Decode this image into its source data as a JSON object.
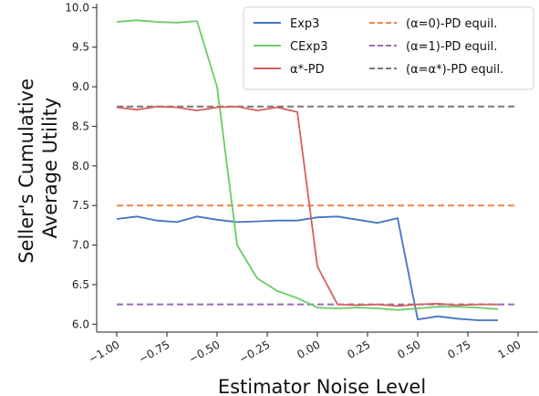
{
  "chart_data": {
    "type": "line",
    "xlabel": "Estimator Noise Level",
    "ylabel_lines": [
      "Seller's Cumulative",
      "Average Utility"
    ],
    "xlim": [
      -1.1,
      1.1
    ],
    "ylim": [
      5.9,
      10.05
    ],
    "x_ticks": [
      -1.0,
      -0.75,
      -0.5,
      -0.25,
      0.0,
      0.25,
      0.5,
      0.75,
      1.0
    ],
    "x_tick_labels": [
      "−1.00",
      "−0.75",
      "−0.50",
      "−0.25",
      "0.00",
      "0.25",
      "0.50",
      "0.75",
      "1.00"
    ],
    "y_ticks": [
      6.0,
      6.5,
      7.0,
      7.5,
      8.0,
      8.5,
      9.0,
      9.5,
      10.0
    ],
    "y_tick_labels": [
      "6.0",
      "6.5",
      "7.0",
      "7.5",
      "8.0",
      "8.5",
      "9.0",
      "9.5",
      "10.0"
    ],
    "grid": false,
    "legend_position": "top-right",
    "x": [
      -1.0,
      -0.9,
      -0.8,
      -0.7,
      -0.6,
      -0.5,
      -0.4,
      -0.3,
      -0.2,
      -0.1,
      0.0,
      0.1,
      0.2,
      0.3,
      0.4,
      0.5,
      0.6,
      0.7,
      0.8,
      0.9
    ],
    "series": [
      {
        "name": "Exp3",
        "color": "#4472c4",
        "style": "solid",
        "values": [
          7.33,
          7.36,
          7.31,
          7.29,
          7.36,
          7.32,
          7.29,
          7.3,
          7.31,
          7.31,
          7.35,
          7.36,
          7.32,
          7.28,
          7.34,
          6.06,
          6.1,
          6.07,
          6.05,
          6.05
        ]
      },
      {
        "name": "CExp3",
        "color": "#6acc64",
        "style": "solid",
        "values": [
          9.82,
          9.84,
          9.82,
          9.81,
          9.83,
          9.0,
          7.0,
          6.58,
          6.42,
          6.33,
          6.21,
          6.2,
          6.21,
          6.2,
          6.18,
          6.2,
          6.22,
          6.22,
          6.21,
          6.19
        ]
      },
      {
        "name": "α*-PD",
        "color": "#d65f5f",
        "style": "solid",
        "values": [
          8.74,
          8.71,
          8.75,
          8.74,
          8.7,
          8.74,
          8.75,
          8.7,
          8.74,
          8.68,
          6.73,
          6.25,
          6.24,
          6.25,
          6.23,
          6.25,
          6.26,
          6.24,
          6.25,
          6.25
        ]
      }
    ],
    "reference_lines": [
      {
        "name": "(α=0)-PD equil.",
        "value": 7.5,
        "color": "#ee854a",
        "style": "dashed"
      },
      {
        "name": "(α=1)-PD equil.",
        "value": 6.25,
        "color": "#956cb4",
        "style": "dashed"
      },
      {
        "name": "(α=α*)-PD equil.",
        "value": 8.75,
        "color": "#797979",
        "style": "dashed"
      }
    ]
  }
}
